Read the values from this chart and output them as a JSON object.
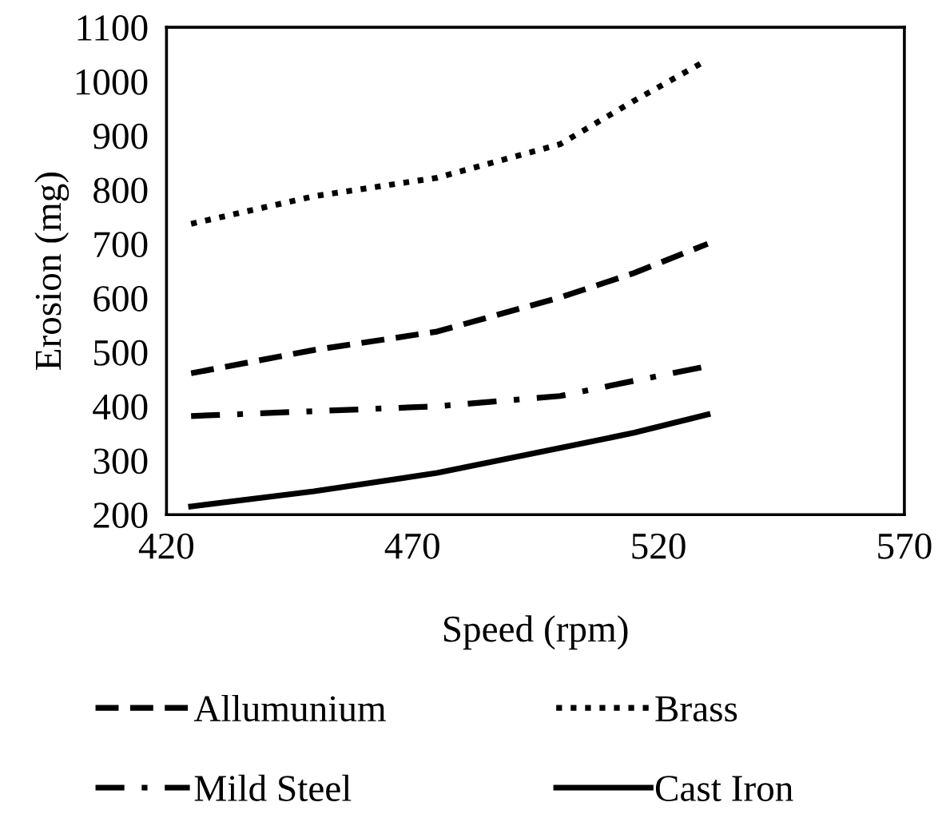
{
  "chart_data": {
    "type": "line",
    "xlabel": "Speed (rpm)",
    "ylabel": "Erosion (mg)",
    "xlim": [
      420,
      570
    ],
    "xticks": [
      420,
      470,
      520,
      570
    ],
    "ylim": [
      200,
      1100
    ],
    "yticks": [
      200,
      300,
      400,
      500,
      600,
      700,
      800,
      900,
      1000,
      1100
    ],
    "grid": false,
    "legend": "bottom",
    "marker": "none",
    "x": [
      425,
      450,
      475,
      500,
      515,
      530
    ],
    "series": [
      {
        "name": "Allumunium",
        "color": "#000000",
        "line_style": "dashed",
        "values": [
          461,
          504,
          538,
          601,
          646,
          700
        ]
      },
      {
        "name": "Brass",
        "color": "#000000",
        "line_style": "dotted",
        "values": [
          737,
          788,
          822,
          884,
          964,
          1040
        ]
      },
      {
        "name": "Mild Steel",
        "color": "#000000",
        "line_style": "dashdot",
        "values": [
          382,
          391,
          400,
          419,
          447,
          474
        ]
      },
      {
        "name": "Cast Iron",
        "color": "#000000",
        "line_style": "solid",
        "values": [
          215,
          243,
          277,
          323,
          351,
          385
        ]
      }
    ]
  }
}
